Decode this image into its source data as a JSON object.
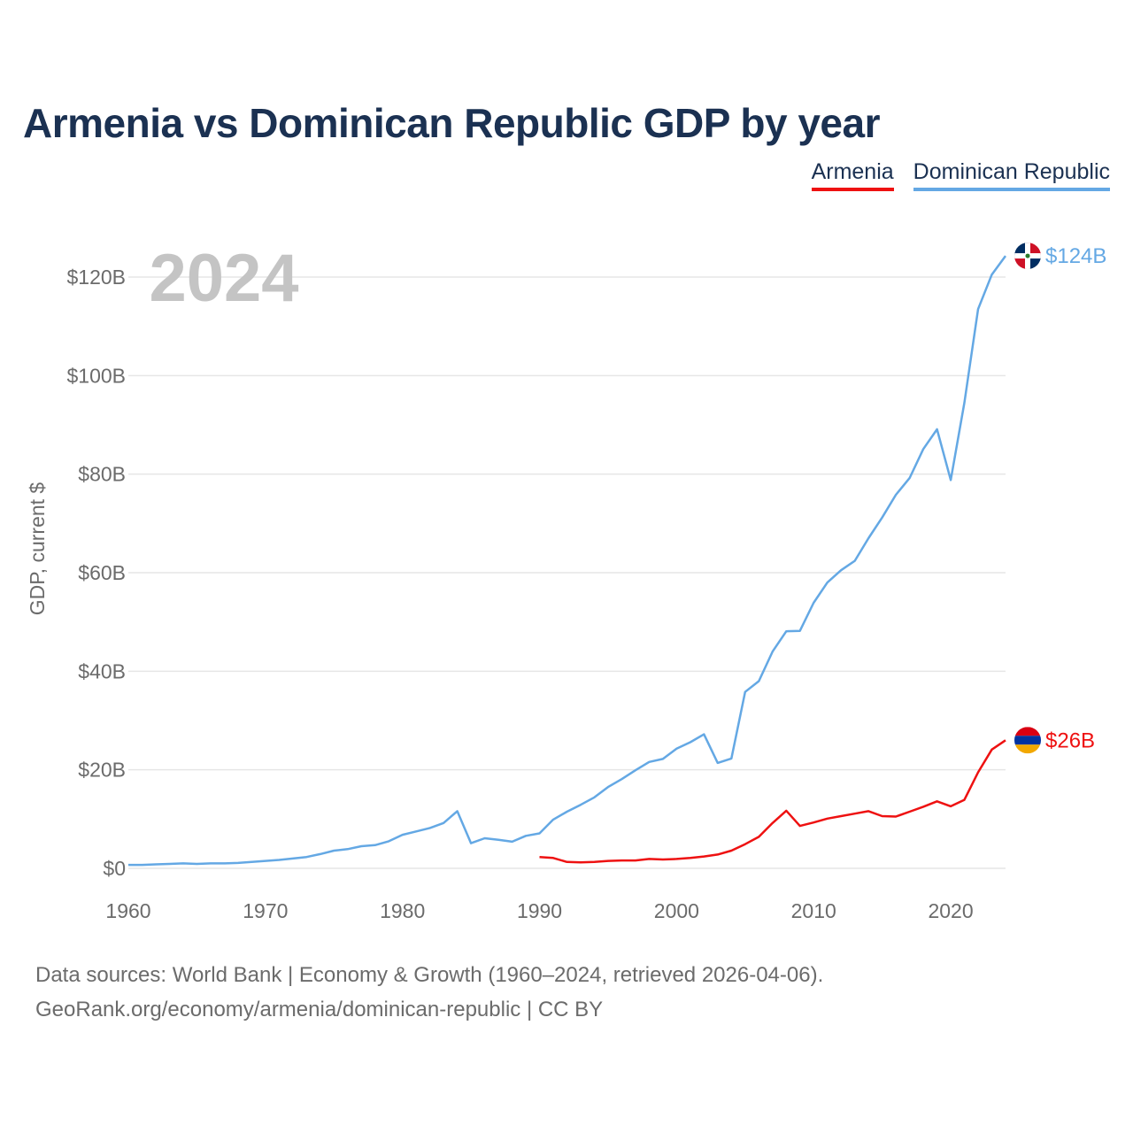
{
  "title": "Armenia vs Dominican Republic GDP by year",
  "legend": [
    {
      "label": "Armenia",
      "color": "#ee1111"
    },
    {
      "label": "Dominican Republic",
      "color": "#64a8e4"
    }
  ],
  "footer": {
    "line1": "Data sources: World Bank | Economy & Growth (1960–2024, retrieved 2026-04-06).",
    "line2": "GeoRank.org/economy/armenia/dominican-republic | CC BY"
  },
  "chart_data": {
    "type": "line",
    "title": "Armenia vs Dominican Republic GDP by year",
    "year_label": "2024",
    "ylabel": "GDP, current $",
    "xlabel": "",
    "xlim": [
      1960,
      2024
    ],
    "ylim": [
      0,
      120
    ],
    "x_ticks": [
      1960,
      1970,
      1980,
      1990,
      2000,
      2010,
      2020
    ],
    "x_tick_labels": [
      "1960",
      "1970",
      "1980",
      "1990",
      "2000",
      "2010",
      "2020"
    ],
    "y_ticks": [
      0,
      20,
      40,
      60,
      80,
      100,
      120
    ],
    "y_tick_labels": [
      "$0",
      "$20B",
      "$40B",
      "$60B",
      "$80B",
      "$100B",
      "$120B"
    ],
    "grid": true,
    "series": [
      {
        "name": "Dominican Republic",
        "color": "#64a8e4",
        "end_label": "$124B",
        "flag": "dominican-republic",
        "x": [
          1960,
          1961,
          1962,
          1963,
          1964,
          1965,
          1966,
          1967,
          1968,
          1969,
          1970,
          1971,
          1972,
          1973,
          1974,
          1975,
          1976,
          1977,
          1978,
          1979,
          1980,
          1981,
          1982,
          1983,
          1984,
          1985,
          1986,
          1987,
          1988,
          1989,
          1990,
          1991,
          1992,
          1993,
          1994,
          1995,
          1996,
          1997,
          1998,
          1999,
          2000,
          2001,
          2002,
          2003,
          2004,
          2005,
          2006,
          2007,
          2008,
          2009,
          2010,
          2011,
          2012,
          2013,
          2014,
          2015,
          2016,
          2017,
          2018,
          2019,
          2020,
          2021,
          2022,
          2023,
          2024
        ],
        "values": [
          0.7,
          0.7,
          0.8,
          0.9,
          1.0,
          0.9,
          1.0,
          1.0,
          1.1,
          1.3,
          1.5,
          1.7,
          2.0,
          2.3,
          2.9,
          3.6,
          3.9,
          4.5,
          4.7,
          5.5,
          6.8,
          7.5,
          8.2,
          9.2,
          11.6,
          5.1,
          6.1,
          5.8,
          5.4,
          6.6,
          7.1,
          9.9,
          11.5,
          12.9,
          14.4,
          16.5,
          18.1,
          19.9,
          21.6,
          22.2,
          24.3,
          25.6,
          27.2,
          21.4,
          22.3,
          35.8,
          38.0,
          44.0,
          48.1,
          48.2,
          53.9,
          58.0,
          60.5,
          62.4,
          67.0,
          71.2,
          75.8,
          79.2,
          85.1,
          89.1,
          78.8,
          94.5,
          113.5,
          120.5,
          124.3
        ]
      },
      {
        "name": "Armenia",
        "color": "#ee1111",
        "end_label": "$26B",
        "flag": "armenia",
        "x": [
          1990,
          1991,
          1992,
          1993,
          1994,
          1995,
          1996,
          1997,
          1998,
          1999,
          2000,
          2001,
          2002,
          2003,
          2004,
          2005,
          2006,
          2007,
          2008,
          2009,
          2010,
          2011,
          2012,
          2013,
          2014,
          2015,
          2016,
          2017,
          2018,
          2019,
          2020,
          2021,
          2022,
          2023,
          2024
        ],
        "values": [
          2.3,
          2.1,
          1.3,
          1.2,
          1.3,
          1.5,
          1.6,
          1.6,
          1.9,
          1.8,
          1.9,
          2.1,
          2.4,
          2.8,
          3.6,
          4.9,
          6.4,
          9.2,
          11.7,
          8.6,
          9.3,
          10.1,
          10.6,
          11.1,
          11.6,
          10.6,
          10.5,
          11.5,
          12.5,
          13.6,
          12.6,
          13.9,
          19.5,
          24.1,
          26.0
        ]
      }
    ]
  }
}
